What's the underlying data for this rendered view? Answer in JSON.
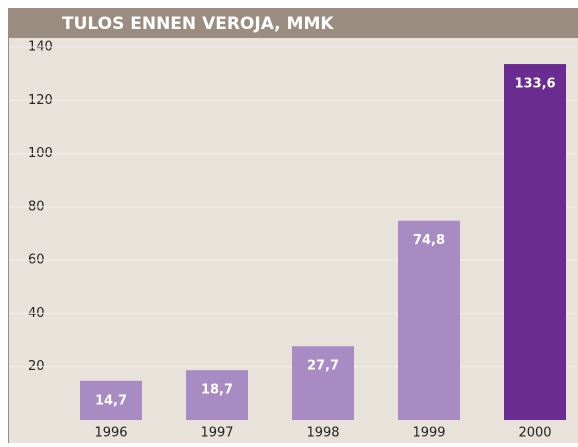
{
  "chart_data": {
    "type": "bar",
    "title": "TULOS ENNEN VEROJA, MMK",
    "categories": [
      "1996",
      "1997",
      "1998",
      "1999",
      "2000"
    ],
    "values": [
      14.7,
      18.7,
      27.7,
      74.8,
      133.6
    ],
    "value_labels": [
      "14,7",
      "18,7",
      "27,7",
      "74,8",
      "133,6"
    ],
    "colors": [
      "#a98bc4",
      "#a98bc4",
      "#a98bc4",
      "#a98bc4",
      "#6b2c91"
    ],
    "ylim": [
      0,
      140
    ],
    "yticks": [
      20,
      40,
      60,
      80,
      100,
      120,
      140
    ],
    "grid": true
  }
}
